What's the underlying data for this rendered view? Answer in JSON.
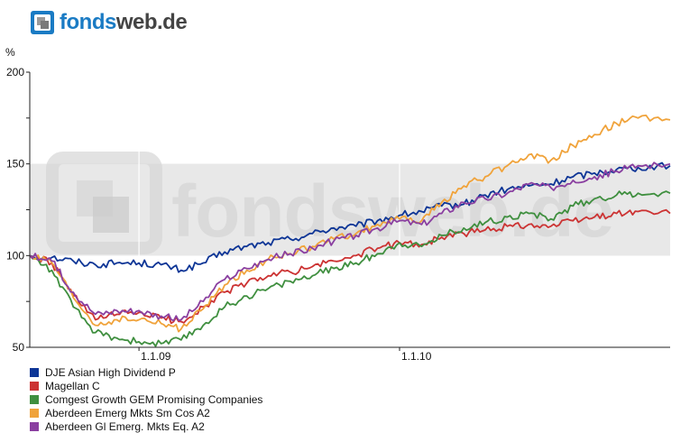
{
  "logo": {
    "brand": "fonds",
    "tld": "web.de"
  },
  "watermark": "fondsweb.de",
  "chart_data": {
    "type": "line",
    "ylabel": "%",
    "ylim": [
      50,
      200
    ],
    "yticks": [
      50,
      100,
      150,
      200
    ],
    "xlim": [
      "2008-08-01",
      "2011-01-15"
    ],
    "xticks": [
      {
        "date": "2009-01-01",
        "label": "1.1.09"
      },
      {
        "date": "2010-01-01",
        "label": "1.1.10"
      }
    ],
    "background": "#e8e8e8",
    "grid": true,
    "legend_position": "bottom",
    "series": [
      {
        "name": "DJE Asian High Dividend P",
        "color": "#0d3596",
        "points": [
          [
            "2008-08-01",
            100
          ],
          [
            "2008-09-01",
            99
          ],
          [
            "2008-10-01",
            97
          ],
          [
            "2008-11-01",
            95
          ],
          [
            "2008-12-01",
            96
          ],
          [
            "2009-01-01",
            96
          ],
          [
            "2009-02-01",
            95
          ],
          [
            "2009-03-01",
            92
          ],
          [
            "2009-04-01",
            96
          ],
          [
            "2009-05-01",
            102
          ],
          [
            "2009-06-01",
            105
          ],
          [
            "2009-07-01",
            107
          ],
          [
            "2009-08-01",
            109
          ],
          [
            "2009-09-01",
            112
          ],
          [
            "2009-10-01",
            115
          ],
          [
            "2009-11-01",
            116
          ],
          [
            "2009-12-01",
            119
          ],
          [
            "2010-01-01",
            122
          ],
          [
            "2010-02-01",
            124
          ],
          [
            "2010-03-01",
            127
          ],
          [
            "2010-04-01",
            128
          ],
          [
            "2010-05-01",
            133
          ],
          [
            "2010-06-01",
            136
          ],
          [
            "2010-07-01",
            138
          ],
          [
            "2010-08-01",
            139
          ],
          [
            "2010-09-01",
            143
          ],
          [
            "2010-10-01",
            145
          ],
          [
            "2010-11-01",
            147
          ],
          [
            "2010-12-01",
            148
          ],
          [
            "2011-01-15",
            149
          ]
        ]
      },
      {
        "name": "Magellan C",
        "color": "#cc3333",
        "points": [
          [
            "2008-08-01",
            100
          ],
          [
            "2008-09-01",
            96
          ],
          [
            "2008-10-01",
            78
          ],
          [
            "2008-11-01",
            65
          ],
          [
            "2008-12-01",
            68
          ],
          [
            "2009-01-01",
            69
          ],
          [
            "2009-02-01",
            66
          ],
          [
            "2009-03-01",
            64
          ],
          [
            "2009-04-01",
            72
          ],
          [
            "2009-05-01",
            80
          ],
          [
            "2009-06-01",
            85
          ],
          [
            "2009-07-01",
            89
          ],
          [
            "2009-08-01",
            91
          ],
          [
            "2009-09-01",
            94
          ],
          [
            "2009-10-01",
            97
          ],
          [
            "2009-11-01",
            100
          ],
          [
            "2009-12-01",
            104
          ],
          [
            "2010-01-01",
            107
          ],
          [
            "2010-02-01",
            106
          ],
          [
            "2010-03-01",
            110
          ],
          [
            "2010-04-01",
            112
          ],
          [
            "2010-05-01",
            114
          ],
          [
            "2010-06-01",
            116
          ],
          [
            "2010-07-01",
            117
          ],
          [
            "2010-08-01",
            116
          ],
          [
            "2010-09-01",
            119
          ],
          [
            "2010-10-01",
            121
          ],
          [
            "2010-11-01",
            123
          ],
          [
            "2010-12-01",
            124
          ],
          [
            "2011-01-15",
            123
          ]
        ]
      },
      {
        "name": "Comgest Growth GEM Promising Companies",
        "color": "#3f8f3f",
        "points": [
          [
            "2008-08-01",
            100
          ],
          [
            "2008-09-01",
            92
          ],
          [
            "2008-10-01",
            72
          ],
          [
            "2008-11-01",
            58
          ],
          [
            "2008-12-01",
            55
          ],
          [
            "2009-01-01",
            53
          ],
          [
            "2009-02-01",
            52
          ],
          [
            "2009-03-01",
            54
          ],
          [
            "2009-04-01",
            62
          ],
          [
            "2009-05-01",
            72
          ],
          [
            "2009-06-01",
            78
          ],
          [
            "2009-07-01",
            82
          ],
          [
            "2009-08-01",
            86
          ],
          [
            "2009-09-01",
            89
          ],
          [
            "2009-10-01",
            93
          ],
          [
            "2009-11-01",
            96
          ],
          [
            "2009-12-01",
            101
          ],
          [
            "2010-01-01",
            107
          ],
          [
            "2010-02-01",
            105
          ],
          [
            "2010-03-01",
            111
          ],
          [
            "2010-04-01",
            115
          ],
          [
            "2010-05-01",
            118
          ],
          [
            "2010-06-01",
            121
          ],
          [
            "2010-07-01",
            123
          ],
          [
            "2010-08-01",
            120
          ],
          [
            "2010-09-01",
            127
          ],
          [
            "2010-10-01",
            131
          ],
          [
            "2010-11-01",
            133
          ],
          [
            "2010-12-01",
            134
          ],
          [
            "2011-01-15",
            134
          ]
        ]
      },
      {
        "name": "Aberdeen Emerg Mkts Sm Cos A2",
        "color": "#f0a33b",
        "points": [
          [
            "2008-08-01",
            100
          ],
          [
            "2008-09-01",
            96
          ],
          [
            "2008-10-01",
            77
          ],
          [
            "2008-11-01",
            62
          ],
          [
            "2008-12-01",
            65
          ],
          [
            "2009-01-01",
            65
          ],
          [
            "2009-02-01",
            63
          ],
          [
            "2009-03-01",
            60
          ],
          [
            "2009-04-01",
            71
          ],
          [
            "2009-05-01",
            84
          ],
          [
            "2009-06-01",
            92
          ],
          [
            "2009-07-01",
            98
          ],
          [
            "2009-08-01",
            101
          ],
          [
            "2009-09-01",
            105
          ],
          [
            "2009-10-01",
            109
          ],
          [
            "2009-11-01",
            112
          ],
          [
            "2009-12-01",
            117
          ],
          [
            "2010-01-01",
            120
          ],
          [
            "2010-02-01",
            119
          ],
          [
            "2010-03-01",
            129
          ],
          [
            "2010-04-01",
            138
          ],
          [
            "2010-05-01",
            143
          ],
          [
            "2010-06-01",
            149
          ],
          [
            "2010-07-01",
            155
          ],
          [
            "2010-08-01",
            152
          ],
          [
            "2010-09-01",
            160
          ],
          [
            "2010-10-01",
            166
          ],
          [
            "2010-11-01",
            172
          ],
          [
            "2010-12-01",
            175
          ],
          [
            "2011-01-15",
            174
          ]
        ]
      },
      {
        "name": "Aberdeen Gl Emerg. Mkts Eq. A2",
        "color": "#8a3fa0",
        "points": [
          [
            "2008-08-01",
            100
          ],
          [
            "2008-09-01",
            97
          ],
          [
            "2008-10-01",
            80
          ],
          [
            "2008-11-01",
            68
          ],
          [
            "2008-12-01",
            70
          ],
          [
            "2009-01-01",
            70
          ],
          [
            "2009-02-01",
            67
          ],
          [
            "2009-03-01",
            65
          ],
          [
            "2009-04-01",
            75
          ],
          [
            "2009-05-01",
            87
          ],
          [
            "2009-06-01",
            93
          ],
          [
            "2009-07-01",
            98
          ],
          [
            "2009-08-01",
            101
          ],
          [
            "2009-09-01",
            104
          ],
          [
            "2009-10-01",
            108
          ],
          [
            "2009-11-01",
            111
          ],
          [
            "2009-12-01",
            115
          ],
          [
            "2010-01-01",
            119
          ],
          [
            "2010-02-01",
            117
          ],
          [
            "2010-03-01",
            123
          ],
          [
            "2010-04-01",
            129
          ],
          [
            "2010-05-01",
            131
          ],
          [
            "2010-06-01",
            134
          ],
          [
            "2010-07-01",
            139
          ],
          [
            "2010-08-01",
            137
          ],
          [
            "2010-09-01",
            141
          ],
          [
            "2010-10-01",
            143
          ],
          [
            "2010-11-01",
            146
          ],
          [
            "2010-12-01",
            149
          ],
          [
            "2011-01-15",
            150
          ]
        ]
      }
    ]
  }
}
